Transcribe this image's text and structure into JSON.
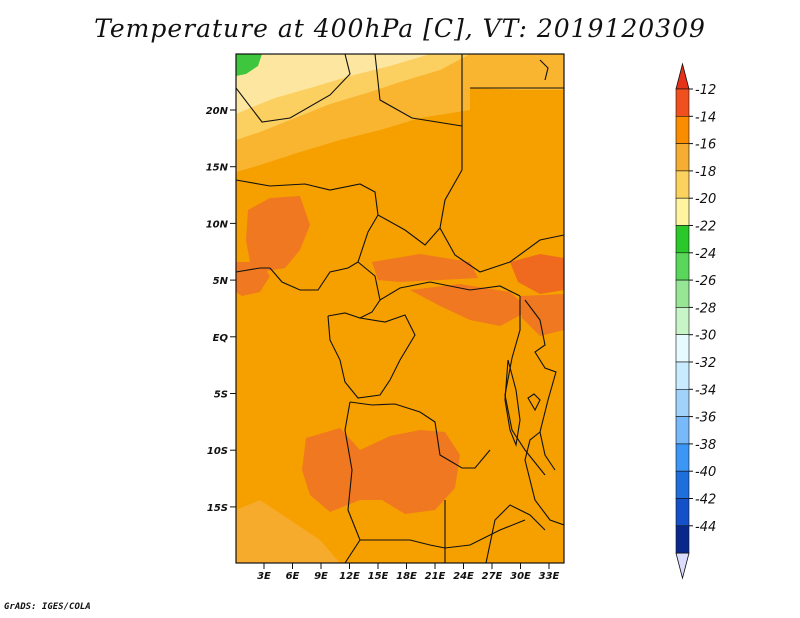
{
  "title": "Temperature at 400hPa [C], VT: 2019120309",
  "credit": "GrADS: IGES/COLA",
  "map": {
    "lat_labels": [
      "20N",
      "15N",
      "10N",
      "5N",
      "EQ",
      "5S",
      "10S",
      "15S"
    ],
    "lon_labels": [
      "3E",
      "6E",
      "9E",
      "12E",
      "15E",
      "18E",
      "21E",
      "24E",
      "27E",
      "30E",
      "33E"
    ]
  },
  "colorbar": {
    "labels": [
      "-12",
      "-14",
      "-16",
      "-18",
      "-20",
      "-22",
      "-24",
      "-26",
      "-28",
      "-30",
      "-32",
      "-34",
      "-36",
      "-38",
      "-40",
      "-42",
      "-44"
    ],
    "colors": [
      "#f0501e",
      "#fa8c00",
      "#f5ad32",
      "#fcd25f",
      "#fff5a0",
      "#2ac82a",
      "#5ad75a",
      "#96e696",
      "#c8f5c8",
      "#e6faff",
      "#c8ebff",
      "#a0d2fa",
      "#78b9fa",
      "#3c96f5",
      "#1e6edc",
      "#1450c8",
      "#0a288c"
    ],
    "top_arrow_color": "#e63218",
    "bottom_arrow_color": "#dcdcff"
  },
  "field_colors": {
    "base": "#f6a000",
    "warm": "#f07820",
    "warmer": "#ef6a1e",
    "cool1": "#f9b530",
    "cool2": "#fcd060",
    "cool3": "#fde7a0",
    "green": "#3ec63e",
    "south": "#f7ab2c"
  }
}
